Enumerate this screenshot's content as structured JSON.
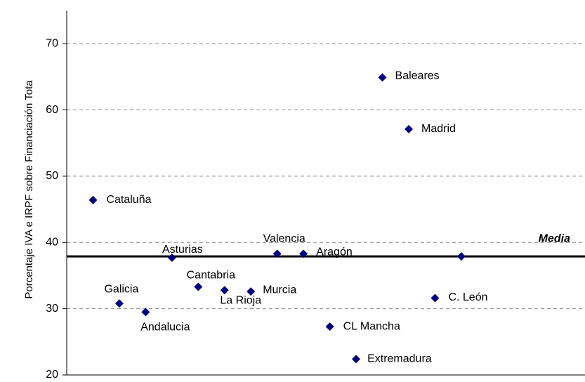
{
  "chart_data": {
    "type": "scatter",
    "y_label": "Porcentaje IVA e IRPF sobre Financiación Tota",
    "labels": [
      "Cataluña",
      "Galicia",
      "Andalucia",
      "Asturias",
      "Cantabria",
      "La Rioja",
      "Murcia",
      "Valencia",
      "Aragón",
      "CL Mancha",
      "Extremadura",
      "Baleares",
      "Madrid",
      "C. León",
      null
    ],
    "x": [
      1,
      2,
      3,
      4,
      5,
      6,
      7,
      8,
      9,
      10,
      11,
      12,
      13,
      14,
      15
    ],
    "values": [
      46.4,
      30.8,
      29.5,
      37.7,
      33.3,
      32.8,
      32.6,
      38.3,
      38.3,
      27.3,
      22.4,
      64.9,
      57.1,
      31.6,
      37.9
    ],
    "color": "#000080",
    "xlim": [
      0,
      19.7
    ],
    "ylim": [
      20,
      75
    ],
    "yticks": [
      20,
      30,
      40,
      50,
      60,
      70
    ],
    "grid": true,
    "reference_line": {
      "label": "Media",
      "value": 37.9
    }
  }
}
